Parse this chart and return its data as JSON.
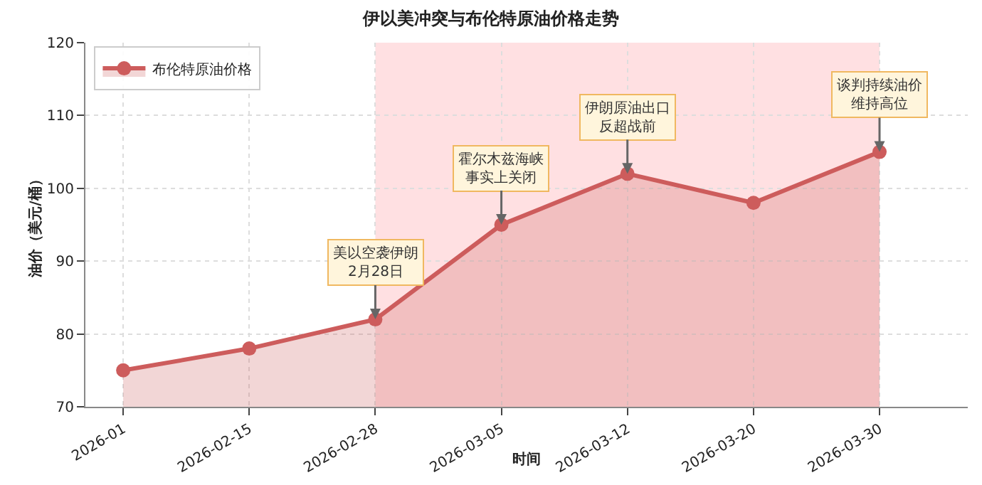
{
  "chart_data": {
    "type": "area",
    "title": "伊以美冲突与布伦特原油价格走势",
    "xlabel": "时间",
    "ylabel": "油价（美元/桶）",
    "categories": [
      "2026-01",
      "2026-02-15",
      "2026-02-28",
      "2026-03-05",
      "2026-03-12",
      "2026-03-20",
      "2026-03-30"
    ],
    "series": [
      {
        "name": "布伦特原油价格",
        "color": "#cd5c5c",
        "values": [
          75,
          78,
          82,
          95,
          102,
          98,
          105
        ]
      }
    ],
    "ylim": [
      70,
      120
    ],
    "yticks": [
      70,
      80,
      90,
      100,
      110,
      120
    ],
    "bands": [
      {
        "axis": "x",
        "from": "2026-02-28",
        "to": "2026-03-30",
        "color": "#ffe0e2"
      }
    ],
    "annotations": [
      {
        "text": "美以空袭伊朗\n2月28日",
        "x": "2026-02-28",
        "y": 82
      },
      {
        "text": "霍尔木兹海峡事实上关闭",
        "x": "2026-03-05",
        "y": 95
      },
      {
        "text": "伊朗原油出口反超战前",
        "x": "2026-03-12",
        "y": 102
      },
      {
        "text": "谈判持续油价维持高位",
        "x": "2026-03-30",
        "y": 105
      }
    ],
    "grid": true,
    "legend": "top left",
    "marker": "circle",
    "line_style": "solid"
  }
}
